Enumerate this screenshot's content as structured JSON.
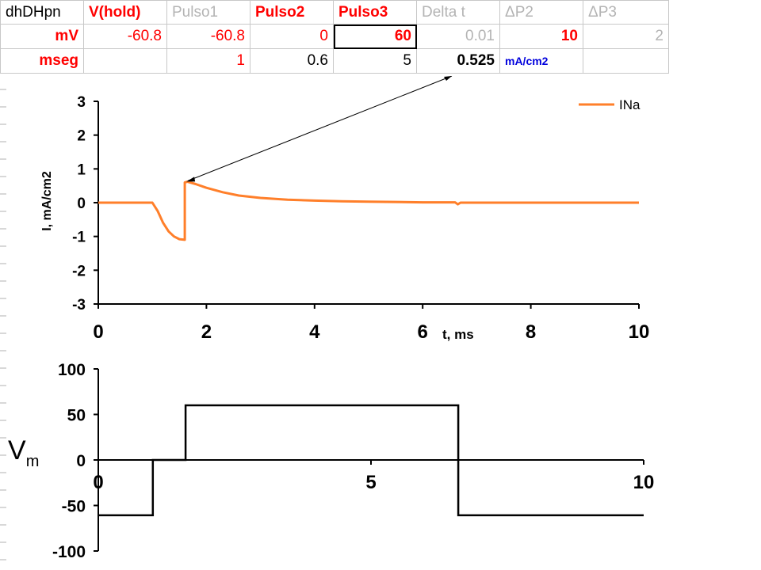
{
  "spreadsheet": {
    "rows": [
      [
        {
          "text": "dhDHpn",
          "style": "black"
        },
        {
          "text": "V(hold)",
          "style": "red"
        },
        {
          "text": "Pulso1",
          "style": "grey"
        },
        {
          "text": "Pulso2",
          "style": "red"
        },
        {
          "text": "Pulso3",
          "style": "red"
        },
        {
          "text": "Delta t",
          "style": "grey"
        },
        {
          "text": "ΔP2",
          "style": "grey"
        },
        {
          "text": "ΔP3",
          "style": "grey"
        }
      ],
      [
        {
          "text": "mV",
          "style": "red"
        },
        {
          "text": "-60.8",
          "style": "redplain"
        },
        {
          "text": "-60.8",
          "style": "redplain"
        },
        {
          "text": "0",
          "style": "redplain"
        },
        {
          "text": "60",
          "style": "red",
          "selected": true
        },
        {
          "text": "0.01",
          "style": "grey"
        },
        {
          "text": "10",
          "style": "red"
        },
        {
          "text": "2",
          "style": "grey"
        }
      ],
      [
        {
          "text": "mseg",
          "style": "red"
        },
        {
          "text": "",
          "style": "black"
        },
        {
          "text": "1",
          "style": "redplain"
        },
        {
          "text": "0.6",
          "style": "black"
        },
        {
          "text": "5",
          "style": "black"
        },
        {
          "text": "0.525",
          "style": "boldblack"
        },
        {
          "text": "mA/cm2",
          "style": "blue"
        },
        {
          "text": "",
          "style": "black"
        }
      ]
    ]
  },
  "colors": {
    "series_ina": "#ff7f2a",
    "axis": "#000000",
    "sheet_red": "#ff0000",
    "sheet_grey": "#b4b4b4",
    "sheet_blue": "#0000dd"
  },
  "chart_data": [
    {
      "type": "line",
      "title": "",
      "xlabel": "t, ms",
      "ylabel": "I, mA/cm2",
      "xlim": [
        0,
        10
      ],
      "ylim": [
        -3,
        3
      ],
      "xticks": [
        0,
        2,
        4,
        6,
        8,
        10
      ],
      "yticks": [
        3,
        2,
        1,
        0,
        -1,
        -2,
        -3
      ],
      "grid": false,
      "legend": "top-right",
      "series": [
        {
          "name": "INa",
          "color": "#ff7f2a",
          "x": [
            0,
            1.0,
            1.1,
            1.2,
            1.3,
            1.4,
            1.5,
            1.6,
            1.6,
            1.65,
            1.8,
            2.0,
            2.3,
            2.6,
            3.0,
            3.5,
            4.0,
            4.5,
            5.0,
            5.5,
            6.0,
            6.6,
            6.65,
            6.7,
            7.0,
            8.0,
            9.0,
            10.0
          ],
          "y": [
            0,
            0,
            -0.25,
            -0.6,
            -0.85,
            -1.0,
            -1.08,
            -1.1,
            0.6,
            0.62,
            0.55,
            0.44,
            0.31,
            0.21,
            0.14,
            0.09,
            0.06,
            0.04,
            0.03,
            0.02,
            0.01,
            0.01,
            -0.05,
            0.0,
            0.0,
            0.0,
            0.0,
            0.0
          ]
        }
      ]
    },
    {
      "type": "line",
      "title": "",
      "xlabel": "",
      "ylabel": "V",
      "ylabel_sub": "m",
      "xlim": [
        0,
        10
      ],
      "ylim": [
        -100,
        100
      ],
      "xticks": [
        0,
        5,
        10
      ],
      "yticks": [
        100,
        50,
        0,
        -50,
        -100
      ],
      "grid": false,
      "series": [
        {
          "x": [
            0,
            1.0,
            1.0,
            1.6,
            1.6,
            6.6,
            6.6,
            10
          ],
          "y": [
            -60.8,
            -60.8,
            0,
            0,
            60,
            60,
            -60.8,
            -60.8
          ]
        }
      ]
    }
  ]
}
